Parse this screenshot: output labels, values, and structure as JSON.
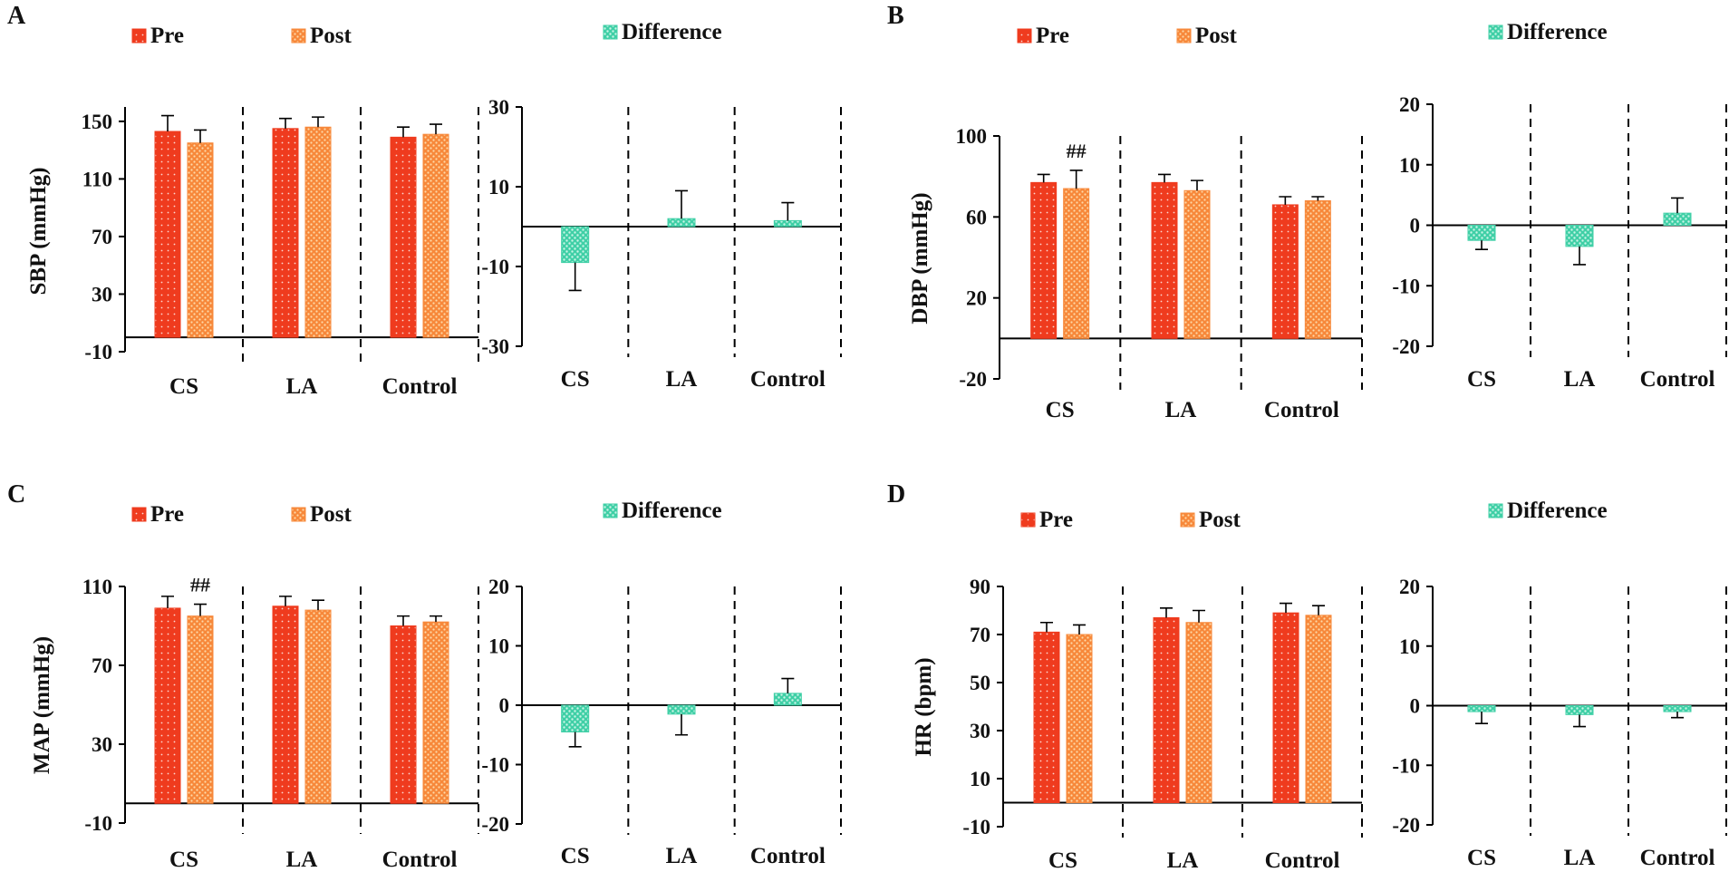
{
  "colors": {
    "pre": "#ef3b1e",
    "post": "#f7883a",
    "difference": "#3fcfa6"
  },
  "chart_data": [
    {
      "panel": "A",
      "type": "bar",
      "title": "",
      "legend": {
        "pre": "Pre",
        "post": "Post",
        "difference": "Difference"
      },
      "left": {
        "ylabel": "SBP (mmHg)",
        "ylim": [
          -10,
          160
        ],
        "ticks": [
          "150",
          "110",
          "70",
          "30",
          "-10"
        ],
        "tick_values": [
          150,
          110,
          70,
          30,
          -10
        ],
        "categories": [
          "CS",
          "LA",
          "Control"
        ],
        "series": [
          {
            "name": "Pre",
            "values": [
              143,
              145,
              139
            ],
            "errors": [
              11,
              7,
              7
            ]
          },
          {
            "name": "Post",
            "values": [
              135,
              146,
              141
            ],
            "errors": [
              9,
              7,
              7
            ]
          }
        ],
        "annotations": []
      },
      "right": {
        "ylim": [
          -30,
          30
        ],
        "ticks": [
          "30",
          "10",
          "-10",
          "-30"
        ],
        "tick_values": [
          30,
          10,
          -10,
          -30
        ],
        "categories": [
          "CS",
          "LA",
          "Control"
        ],
        "series": [
          {
            "name": "Difference",
            "values": [
              -9,
              2,
              1.5
            ],
            "errors": [
              7,
              7,
              4.5
            ]
          }
        ]
      }
    },
    {
      "panel": "B",
      "type": "bar",
      "title": "",
      "legend": {
        "pre": "Pre",
        "post": "Post",
        "difference": "Difference"
      },
      "left": {
        "ylabel": "DBP (mmHg)",
        "ylim": [
          -20,
          100
        ],
        "ticks": [
          "100",
          "60",
          "20",
          "-20"
        ],
        "tick_values": [
          100,
          60,
          20,
          -20
        ],
        "categories": [
          "CS",
          "LA",
          "Control"
        ],
        "series": [
          {
            "name": "Pre",
            "values": [
              77,
              77,
              66
            ],
            "errors": [
              4,
              4,
              4
            ]
          },
          {
            "name": "Post",
            "values": [
              74,
              73,
              68
            ],
            "errors": [
              9,
              5,
              2
            ]
          }
        ],
        "annotations": [
          {
            "text": "##",
            "category": 0,
            "series": 1
          }
        ]
      },
      "right": {
        "ylim": [
          -20,
          20
        ],
        "ticks": [
          "20",
          "10",
          "0",
          "-10",
          "-20"
        ],
        "tick_values": [
          20,
          10,
          0,
          -10,
          -20
        ],
        "categories": [
          "CS",
          "LA",
          "Control"
        ],
        "series": [
          {
            "name": "Difference",
            "values": [
              -2.5,
              -3.5,
              2
            ],
            "errors": [
              1.5,
              3,
              2.5
            ]
          }
        ]
      }
    },
    {
      "panel": "C",
      "type": "bar",
      "title": "",
      "legend": {
        "pre": "Pre",
        "post": "Post",
        "difference": "Difference"
      },
      "left": {
        "ylabel": "MAP (mmHg)",
        "ylim": [
          -10,
          110
        ],
        "ticks": [
          "110",
          "70",
          "30",
          "-10"
        ],
        "tick_values": [
          110,
          70,
          30,
          -10
        ],
        "categories": [
          "CS",
          "LA",
          "Control"
        ],
        "series": [
          {
            "name": "Pre",
            "values": [
              99,
              100,
              90
            ],
            "errors": [
              6,
              5,
              5
            ]
          },
          {
            "name": "Post",
            "values": [
              95,
              98,
              92
            ],
            "errors": [
              6,
              5,
              3
            ]
          }
        ],
        "annotations": [
          {
            "text": "##",
            "category": 0,
            "series": 1
          }
        ]
      },
      "right": {
        "ylim": [
          -20,
          20
        ],
        "ticks": [
          "20",
          "10",
          "0",
          "-10",
          "-20"
        ],
        "tick_values": [
          20,
          10,
          0,
          -10,
          -20
        ],
        "categories": [
          "CS",
          "LA",
          "Control"
        ],
        "series": [
          {
            "name": "Difference",
            "values": [
              -4.5,
              -1.5,
              2
            ],
            "errors": [
              2.5,
              3.5,
              2.5
            ]
          }
        ]
      }
    },
    {
      "panel": "D",
      "type": "bar",
      "title": "",
      "legend": {
        "pre": "Pre",
        "post": "Post",
        "difference": "Difference"
      },
      "left": {
        "ylabel": "HR (bpm)",
        "ylim": [
          -10,
          90
        ],
        "ticks": [
          "90",
          "70",
          "50",
          "30",
          "10",
          "-10"
        ],
        "tick_values": [
          90,
          70,
          50,
          30,
          10,
          -10
        ],
        "categories": [
          "CS",
          "LA",
          "Control"
        ],
        "series": [
          {
            "name": "Pre",
            "values": [
              71,
              77,
              79
            ],
            "errors": [
              4,
              4,
              4
            ]
          },
          {
            "name": "Post",
            "values": [
              70,
              75,
              78
            ],
            "errors": [
              4,
              5,
              4
            ]
          }
        ],
        "annotations": []
      },
      "right": {
        "ylim": [
          -20,
          20
        ],
        "ticks": [
          "20",
          "10",
          "0",
          "-10",
          "-20"
        ],
        "tick_values": [
          20,
          10,
          0,
          -10,
          -20
        ],
        "categories": [
          "CS",
          "LA",
          "Control"
        ],
        "series": [
          {
            "name": "Difference",
            "values": [
              -1,
              -1.5,
              -1
            ],
            "errors": [
              2,
              2,
              1
            ]
          }
        ]
      }
    }
  ]
}
